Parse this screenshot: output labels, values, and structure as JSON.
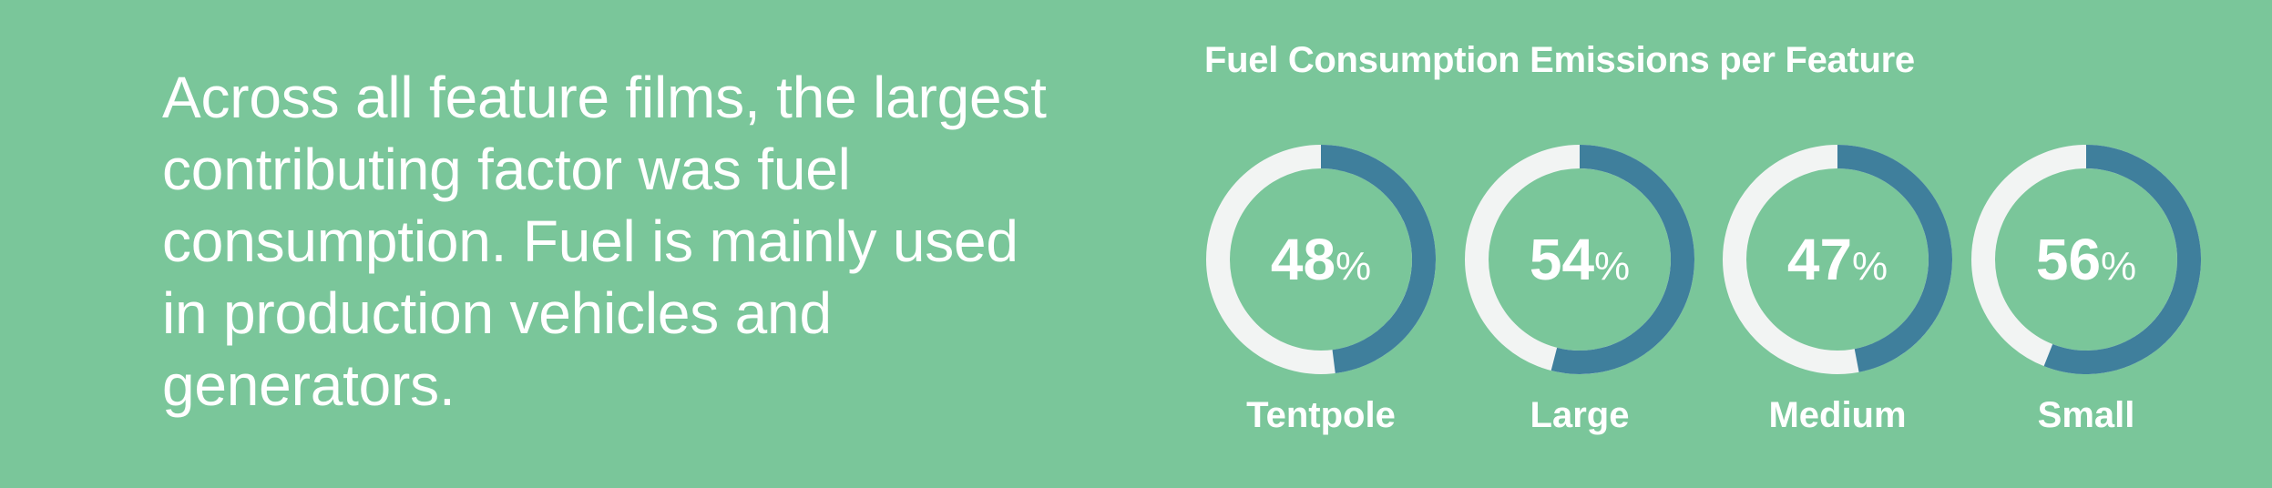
{
  "intro_text": "Across all feature films, the largest contributing factor was fuel consumption. Fuel is mainly used in production vehicles and generators.",
  "colors": {
    "background": "#7ac69a",
    "arc": "#3f7f9c",
    "track": "#f2f4f3",
    "text": "#ffffff"
  },
  "chart_data": {
    "type": "donut",
    "title": "Fuel Consumption Emissions per Feature",
    "unit": "%",
    "categories": [
      "Tentpole",
      "Large",
      "Medium",
      "Small"
    ],
    "values": [
      48,
      54,
      47,
      56
    ]
  }
}
